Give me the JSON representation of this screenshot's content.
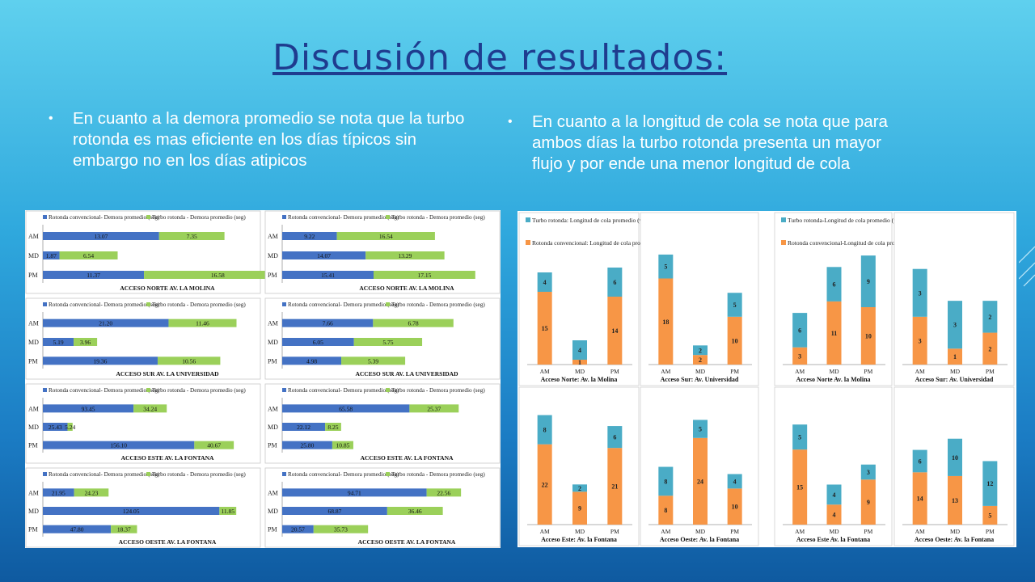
{
  "slide": {
    "title": "Discusión de resultados:",
    "bullet_left": "En cuanto a la demora promedio se nota que la turbo rotonda es mas eficiente en los días típicos sin embargo no en los días atipicos",
    "bullet_right": "En cuanto a la longitud de cola se nota que para ambos días la turbo rotonda presenta un mayor flujo y por ende una menor longitud de cola"
  },
  "colors": {
    "blue": "#4472c4",
    "green": "#9bd05a",
    "orange": "#f79646",
    "cyan": "#4aacc6"
  },
  "chart_data": [
    {
      "type": "bar",
      "orientation": "horizontal",
      "stacked": true,
      "title": "ACCESO NORTE AV. LA MOLINA",
      "legend": [
        "Rotonda convencional- Demora promedio (seg)",
        "Turbo rotonda - Demora promedio (seg)"
      ],
      "categories": [
        "AM",
        "MD",
        "PM"
      ],
      "series": [
        {
          "name": "Rotonda convencional- Demora promedio (seg)",
          "values": [
            13.07,
            1.87,
            11.37
          ]
        },
        {
          "name": "Turbo rotonda - Demora promedio (seg)",
          "values": [
            7.35,
            6.54,
            16.58
          ]
        }
      ]
    },
    {
      "type": "bar",
      "orientation": "horizontal",
      "stacked": true,
      "title": "ACCESO NORTE AV. LA MOLINA",
      "legend": [
        "Rotonda convencional- Demora promedio (seg)",
        "Turbo rotonda - Demora promedio (seg)"
      ],
      "categories": [
        "AM",
        "MD",
        "PM"
      ],
      "series": [
        {
          "name": "Rotonda convencional- Demora promedio (seg)",
          "values": [
            9.22,
            14.07,
            15.41
          ]
        },
        {
          "name": "Turbo rotonda - Demora promedio (seg)",
          "values": [
            16.54,
            13.29,
            17.15
          ]
        }
      ]
    },
    {
      "type": "bar",
      "orientation": "horizontal",
      "stacked": true,
      "title": "ACCESO SUR AV. LA UNIVERSIDAD",
      "legend": [
        "Rotonda convencional- Demora promedio (seg)",
        "Turbo rotonda - Demora promedio (seg)"
      ],
      "categories": [
        "AM",
        "MD",
        "PM"
      ],
      "series": [
        {
          "name": "Rotonda convencional- Demora promedio (seg)",
          "values": [
            21.2,
            5.19,
            19.36
          ]
        },
        {
          "name": "Turbo rotonda - Demora promedio (seg)",
          "values": [
            11.46,
            3.96,
            10.56
          ]
        }
      ]
    },
    {
      "type": "bar",
      "orientation": "horizontal",
      "stacked": true,
      "title": "ACCESO SUR AV. LA UNIVERSIDAD",
      "legend": [
        "Rotonda convencional- Demora promedio (seg)",
        "Turbo rotonda - Demora promedio (seg)"
      ],
      "categories": [
        "AM",
        "MD",
        "PM"
      ],
      "series": [
        {
          "name": "Rotonda convencional- Demora promedio (seg)",
          "values": [
            7.66,
            6.05,
            4.98
          ]
        },
        {
          "name": "Turbo rotonda - Demora promedio (seg)",
          "values": [
            6.78,
            5.75,
            5.39
          ]
        }
      ]
    },
    {
      "type": "bar",
      "orientation": "horizontal",
      "stacked": true,
      "title": "ACCESO ESTE AV. LA FONTANA",
      "legend": [
        "Rotonda convencional- Demora promedio (seg)",
        "Turbo rotonda - Demora promedio (seg)"
      ],
      "categories": [
        "AM",
        "MD",
        "PM"
      ],
      "series": [
        {
          "name": "Rotonda convencional- Demora promedio (seg)",
          "values": [
            93.45,
            25.43,
            156.1
          ]
        },
        {
          "name": "Turbo rotonda - Demora promedio (seg)",
          "values": [
            34.24,
            5.24,
            40.67
          ]
        }
      ]
    },
    {
      "type": "bar",
      "orientation": "horizontal",
      "stacked": true,
      "title": "ACCESO ESTE AV. LA FONTANA",
      "legend": [
        "Rotonda convencional- Demora promedio (seg)",
        "Turbo rotonda - Demora promedio (seg)"
      ],
      "categories": [
        "AM",
        "MD",
        "PM"
      ],
      "series": [
        {
          "name": "Rotonda convencional- Demora promedio (seg)",
          "values": [
            65.58,
            22.12,
            25.8
          ]
        },
        {
          "name": "Turbo rotonda - Demora promedio (seg)",
          "values": [
            25.37,
            8.25,
            10.85
          ]
        }
      ]
    },
    {
      "type": "bar",
      "orientation": "horizontal",
      "stacked": true,
      "title": "ACCESO OESTE AV. LA FONTANA",
      "legend": [
        "Rotonda convencional- Demora promedio (seg)",
        "Turbo rotonda - Demora promedio (seg)"
      ],
      "categories": [
        "AM",
        "MD",
        "PM"
      ],
      "series": [
        {
          "name": "Rotonda convencional- Demora promedio (seg)",
          "values": [
            21.95,
            124.05,
            47.8
          ]
        },
        {
          "name": "Turbo rotonda - Demora promedio (seg)",
          "values": [
            24.23,
            11.85,
            18.37
          ]
        }
      ]
    },
    {
      "type": "bar",
      "orientation": "horizontal",
      "stacked": true,
      "title": "ACCESO OESTE AV. LA FONTANA",
      "legend": [
        "Rotonda convencional- Demora promedio (seg)",
        "Turbo rotonda - Demora promedio (seg)"
      ],
      "categories": [
        "AM",
        "MD",
        "PM"
      ],
      "series": [
        {
          "name": "Rotonda convencional- Demora promedio (seg)",
          "values": [
            94.71,
            68.87,
            20.57
          ]
        },
        {
          "name": "Turbo rotonda - Demora promedio (seg)",
          "values": [
            22.56,
            36.46,
            35.73
          ]
        }
      ]
    },
    {
      "type": "bar",
      "orientation": "vertical",
      "stacked": true,
      "title": "Acceso Norte: Av. la Molina",
      "legend": [
        "Turbo rotonda: Longitud de cola promedio (vehs)",
        "Rotonda convencional: Longitud de cola promedio (vehs)"
      ],
      "categories": [
        "AM",
        "MD",
        "PM"
      ],
      "series": [
        {
          "name": "Rotonda convencional: Longitud de cola promedio (vehs)",
          "values": [
            15,
            1,
            14
          ]
        },
        {
          "name": "Turbo rotonda: Longitud de cola promedio (vehs)",
          "values": [
            4,
            4,
            6
          ]
        }
      ]
    },
    {
      "type": "bar",
      "orientation": "vertical",
      "stacked": true,
      "title": "Acceso Sur: Av. Universidad",
      "categories": [
        "AM",
        "MD",
        "PM"
      ],
      "series": [
        {
          "name": "Rotonda convencional: Longitud de cola promedio (vehs)",
          "values": [
            18,
            2,
            10
          ]
        },
        {
          "name": "Turbo rotonda: Longitud de cola promedio (vehs)",
          "values": [
            5,
            2,
            5
          ]
        }
      ]
    },
    {
      "type": "bar",
      "orientation": "vertical",
      "stacked": true,
      "title": "Acceso Norte Av. la Molina",
      "legend": [
        "Turbo rotonda-Longitud de cola promedio (vehs)",
        "Rotonda convencional-Longitud de cola promedio (vehs)"
      ],
      "categories": [
        "AM",
        "MD",
        "PM"
      ],
      "series": [
        {
          "name": "Rotonda convencional-Longitud de cola promedio (vehs)",
          "values": [
            3,
            11,
            10
          ]
        },
        {
          "name": "Turbo rotonda-Longitud de cola promedio (vehs)",
          "values": [
            6,
            6,
            9
          ]
        }
      ]
    },
    {
      "type": "bar",
      "orientation": "vertical",
      "stacked": true,
      "title": "Acceso Sur: Av. Universidad",
      "categories": [
        "AM",
        "MD",
        "PM"
      ],
      "series": [
        {
          "name": "Rotonda convencional-Longitud de cola promedio (vehs)",
          "values": [
            3,
            1,
            2
          ]
        },
        {
          "name": "Turbo rotonda-Longitud de cola promedio (vehs)",
          "values": [
            3,
            3,
            2
          ]
        }
      ]
    },
    {
      "type": "bar",
      "orientation": "vertical",
      "stacked": true,
      "title": "Acceso Este: Av. la Fontana",
      "categories": [
        "AM",
        "MD",
        "PM"
      ],
      "series": [
        {
          "name": "Rotonda convencional",
          "values": [
            22,
            9,
            21
          ]
        },
        {
          "name": "Turbo rotonda",
          "values": [
            8,
            2,
            6
          ]
        }
      ]
    },
    {
      "type": "bar",
      "orientation": "vertical",
      "stacked": true,
      "title": "Acceso Oeste: Av. la Fontana",
      "categories": [
        "AM",
        "MD",
        "PM"
      ],
      "series": [
        {
          "name": "Rotonda convencional",
          "values": [
            8,
            24,
            10
          ]
        },
        {
          "name": "Turbo rotonda",
          "values": [
            8,
            5,
            4
          ]
        }
      ]
    },
    {
      "type": "bar",
      "orientation": "vertical",
      "stacked": true,
      "title": "Acceso Este Av. la Fontana",
      "categories": [
        "AM",
        "MD",
        "PM"
      ],
      "series": [
        {
          "name": "Rotonda convencional",
          "values": [
            15,
            4,
            9
          ]
        },
        {
          "name": "Turbo rotonda",
          "values": [
            5,
            4,
            3
          ]
        }
      ]
    },
    {
      "type": "bar",
      "orientation": "vertical",
      "stacked": true,
      "title": "Acceso Oeste: Av. la Fontana",
      "categories": [
        "AM",
        "MD",
        "PM"
      ],
      "series": [
        {
          "name": "Rotonda convencional",
          "values": [
            14,
            13,
            5
          ]
        },
        {
          "name": "Turbo rotonda",
          "values": [
            6,
            10,
            12
          ]
        }
      ]
    }
  ]
}
